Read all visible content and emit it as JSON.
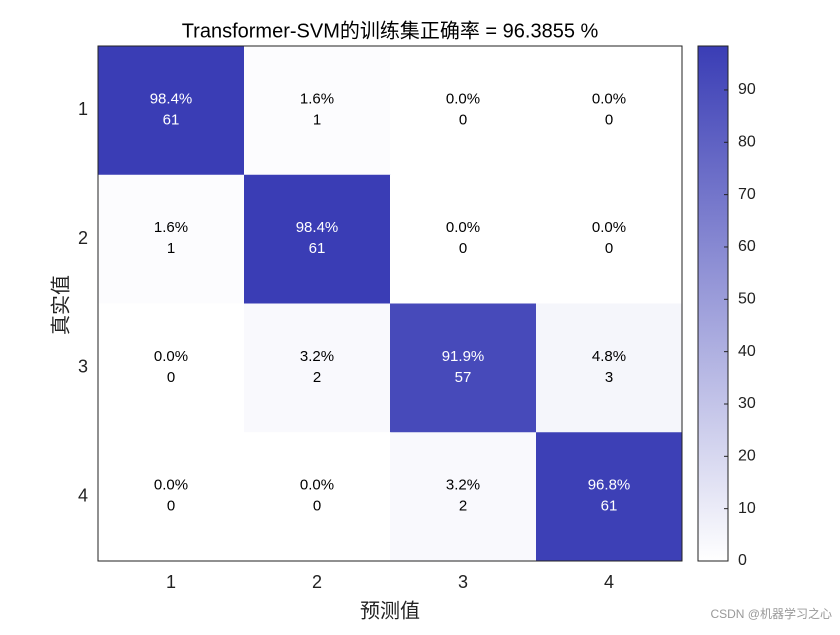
{
  "chart_data": {
    "type": "heatmap",
    "title": "Transformer-SVM的训练集正确率 = 96.3855 %",
    "x_label": "预测值",
    "y_label": "真实值",
    "x_categories": [
      "1",
      "2",
      "3",
      "4"
    ],
    "y_categories": [
      "1",
      "2",
      "3",
      "4"
    ],
    "values": [
      [
        98.4,
        1.6,
        0.0,
        0.0
      ],
      [
        1.6,
        98.4,
        0.0,
        0.0
      ],
      [
        0.0,
        3.2,
        91.9,
        4.8
      ],
      [
        0.0,
        0.0,
        3.2,
        96.8
      ]
    ],
    "value_labels": [
      [
        "98.4%",
        "1.6%",
        "0.0%",
        "0.0%"
      ],
      [
        "1.6%",
        "98.4%",
        "0.0%",
        "0.0%"
      ],
      [
        "0.0%",
        "3.2%",
        "91.9%",
        "4.8%"
      ],
      [
        "0.0%",
        "0.0%",
        "3.2%",
        "96.8%"
      ]
    ],
    "counts": [
      [
        61,
        1,
        0,
        0
      ],
      [
        1,
        61,
        0,
        0
      ],
      [
        0,
        2,
        57,
        3
      ],
      [
        0,
        0,
        2,
        61
      ]
    ],
    "colormap": [
      "#ffffff",
      "#3a3db5"
    ],
    "clim": [
      0,
      98.4
    ],
    "cticks": [
      0,
      10,
      20,
      30,
      40,
      50,
      60,
      70,
      80,
      90
    ]
  },
  "watermark": "CSDN @机器学习之心"
}
